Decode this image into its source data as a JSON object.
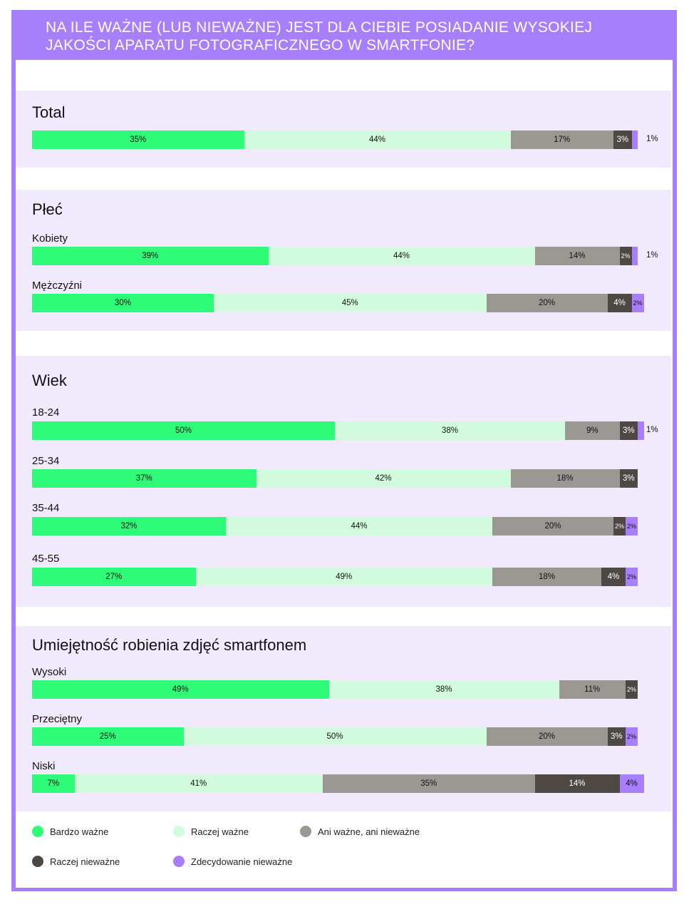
{
  "title": "Na ile ważne (lub nieważne) jest dla ciebie posiadanie wysokiej jakości aparatu fotograficznego w smartfonie?",
  "colors": {
    "bardzo": "#2efb78",
    "raczej": "#d1fbdc",
    "ani": "#9b9893",
    "raczej_nie": "#4d4844",
    "zdecydowanie_nie": "#a77ffc",
    "panel": "#f1eafd",
    "frame": "#a77ffc"
  },
  "chart_data": {
    "type": "bar",
    "orientation": "horizontal-stacked-100",
    "legend_position": "bottom",
    "series": [
      {
        "name": "Bardzo ważne",
        "color": "#2efb78"
      },
      {
        "name": "Raczej ważne",
        "color": "#d1fbdc"
      },
      {
        "name": "Ani ważne, ani nieważne",
        "color": "#9b9893"
      },
      {
        "name": "Raczej nieważne",
        "color": "#4d4844"
      },
      {
        "name": "Zdecydowanie nieważne",
        "color": "#a77ffc"
      }
    ],
    "sections": [
      {
        "title": "Total",
        "rows": [
          {
            "label": "",
            "values": [
              35,
              44,
              17,
              3,
              1
            ]
          }
        ]
      },
      {
        "title": "Płeć",
        "rows": [
          {
            "label": "Kobiety",
            "values": [
              39,
              44,
              14,
              2,
              1
            ]
          },
          {
            "label": "Mężczyźni",
            "values": [
              30,
              45,
              20,
              4,
              2
            ]
          }
        ]
      },
      {
        "title": "Wiek",
        "rows": [
          {
            "label": "18-24",
            "values": [
              50,
              38,
              9,
              3,
              1
            ]
          },
          {
            "label": "25-34",
            "values": [
              37,
              42,
              18,
              3,
              0
            ]
          },
          {
            "label": "35-44",
            "values": [
              32,
              44,
              20,
              2,
              2
            ]
          },
          {
            "label": "45-55",
            "values": [
              27,
              49,
              18,
              4,
              2
            ]
          }
        ]
      },
      {
        "title": "Umiejętność robienia zdjęć smartfonem",
        "rows": [
          {
            "label": "Wysoki",
            "values": [
              49,
              38,
              11,
              2,
              0
            ]
          },
          {
            "label": "Przeciętny",
            "values": [
              25,
              50,
              20,
              3,
              2
            ]
          },
          {
            "label": "Niski",
            "values": [
              7,
              41,
              35,
              14,
              4
            ]
          }
        ]
      }
    ]
  },
  "legend": [
    {
      "label": "Bardzo ważne",
      "color": "#2efb78"
    },
    {
      "label": "Raczej ważne",
      "color": "#d1fbdc"
    },
    {
      "label": "Ani ważne, ani nieważne",
      "color": "#9b9893"
    },
    {
      "label": "Raczej nieważne",
      "color": "#4d4844"
    },
    {
      "label": "Zdecydowanie nieważne",
      "color": "#a77ffc"
    }
  ]
}
